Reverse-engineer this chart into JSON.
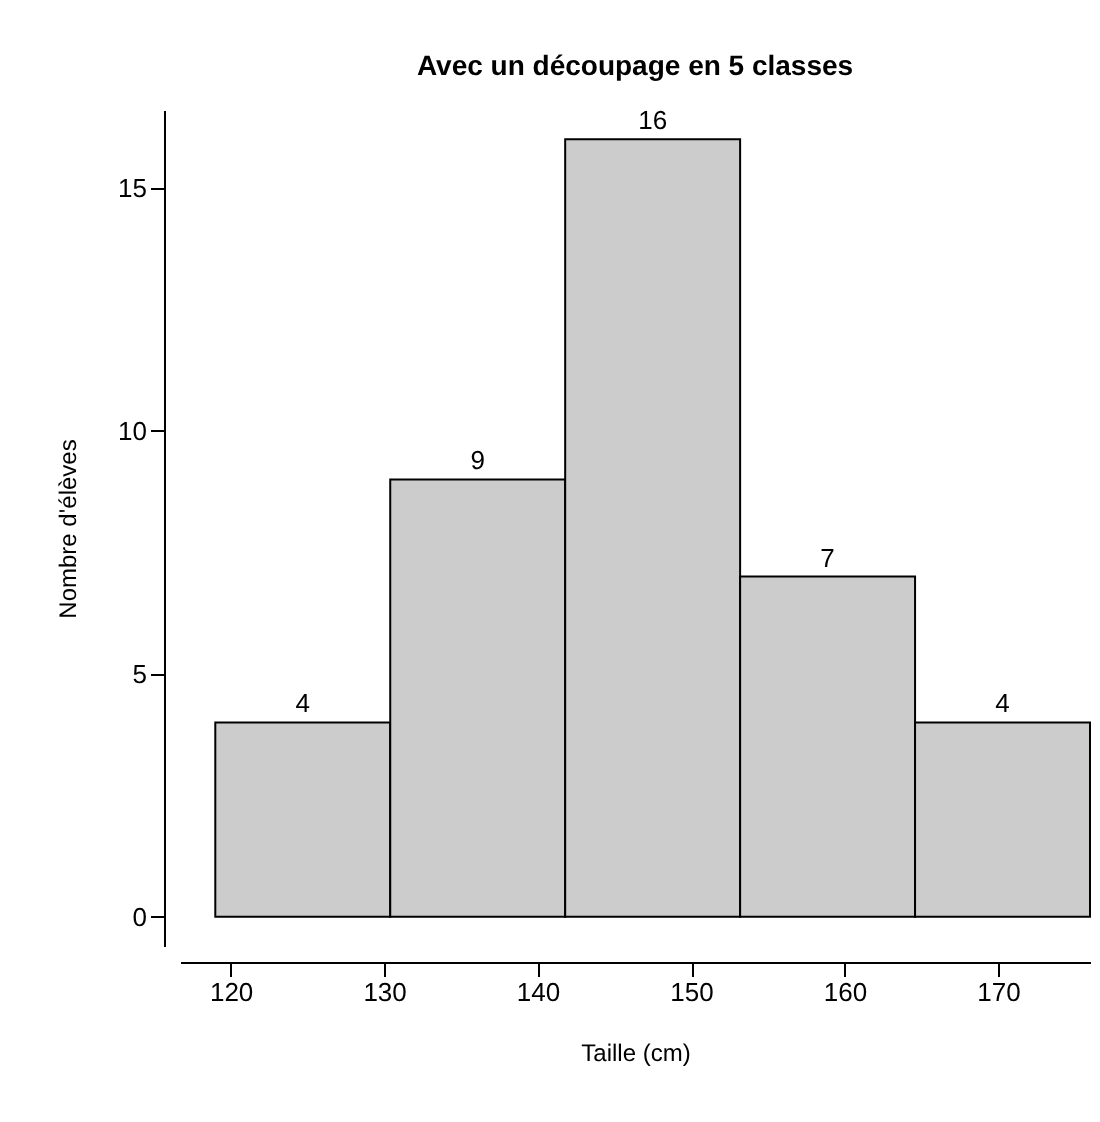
{
  "chart_data": {
    "type": "histogram",
    "title": "Avec un découpage en 5 classes",
    "xlabel": "Taille (cm)",
    "ylabel": "Nombre d'élèves",
    "bins": [
      119,
      130.4,
      141.8,
      153.2,
      164.6,
      176
    ],
    "values": [
      4,
      9,
      16,
      7,
      4
    ],
    "color": "#cccccc",
    "xlim": [
      116.7,
      176
    ],
    "xticks": [
      120,
      130,
      140,
      150,
      160,
      170
    ],
    "ylim": [
      -0.6,
      16.6
    ],
    "yticks": [
      0,
      5,
      10,
      15
    ],
    "data_labels": true,
    "grid": false
  }
}
